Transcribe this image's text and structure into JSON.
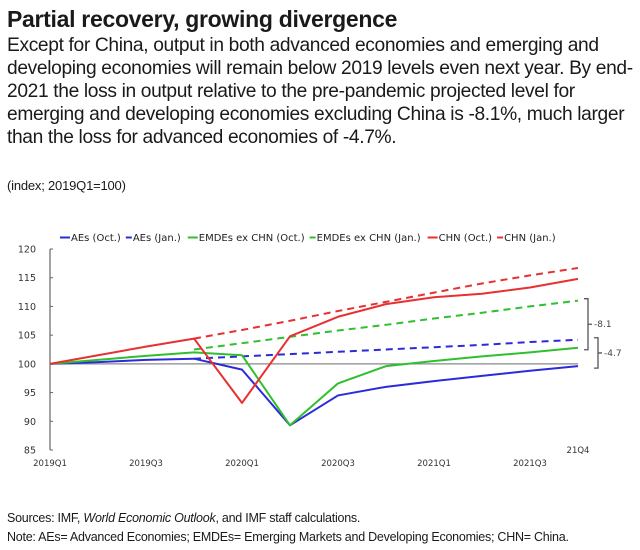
{
  "header": {
    "title": "Partial recovery, growing divergence",
    "subtitle": "Except for China, output in both advanced economies and emerging and developing economies will remain below 2019 levels even next year. By end-2021 the loss in output relative to the pre-pandemic projected level for emerging and developing economies excluding China is -8.1%, much larger than the loss for advanced economies of -4.7%.",
    "units": "(index; 2019Q1=100)"
  },
  "footer": {
    "sources_prefix": "Sources: IMF, ",
    "sources_italic": "World Economic Outlook",
    "sources_suffix": ", and IMF staff calculations.",
    "note": "Note: AEs= Advanced Economies; EMDEs= Emerging Markets and Developing Economies; CHN= China."
  },
  "chart_data": {
    "type": "line",
    "title": "",
    "xlabel": "",
    "ylabel": "index; 2019Q1=100",
    "ylim": [
      85,
      120
    ],
    "yticks": [
      85,
      90,
      95,
      100,
      105,
      110,
      115,
      120
    ],
    "x": [
      "2019Q1",
      "2019Q2",
      "2019Q3",
      "2019Q4",
      "2020Q1",
      "2020Q2",
      "2020Q3",
      "2020Q4",
      "2021Q1",
      "2021Q2",
      "2021Q3",
      "2021Q4"
    ],
    "xtick_labels": [
      {
        "index": 0,
        "label": "2019Q1"
      },
      {
        "index": 2,
        "label": "2019Q3"
      },
      {
        "index": 4,
        "label": "2020Q1"
      },
      {
        "index": 6,
        "label": "2020Q3"
      },
      {
        "index": 8,
        "label": "2021Q1"
      },
      {
        "index": 10,
        "label": "2021Q3"
      }
    ],
    "end_label": "21Q4",
    "reference_line": 100,
    "grid": false,
    "legend_position": "top",
    "series": [
      {
        "name": "AEs (Oct.)",
        "color": "#2b2bd9",
        "dash": false,
        "values": [
          100,
          100.3,
          100.7,
          100.9,
          99.0,
          89.3,
          94.5,
          96.0,
          97.0,
          97.9,
          98.8,
          99.6
        ]
      },
      {
        "name": "AEs (Jan.)",
        "color": "#2b2bd9",
        "dash": true,
        "values": [
          null,
          null,
          null,
          100.9,
          101.3,
          101.7,
          102.1,
          102.5,
          102.9,
          103.3,
          103.8,
          104.2
        ]
      },
      {
        "name": "EMDEs ex CHN (Oct.)",
        "color": "#2fbf2f",
        "dash": false,
        "values": [
          100,
          100.7,
          101.4,
          102.0,
          101.5,
          89.3,
          96.6,
          99.6,
          100.5,
          101.3,
          102.0,
          102.8
        ]
      },
      {
        "name": "EMDEs ex CHN (Jan.)",
        "color": "#2fbf2f",
        "dash": true,
        "values": [
          null,
          null,
          null,
          102.5,
          103.6,
          104.7,
          105.8,
          106.8,
          107.9,
          108.9,
          110.0,
          111.0
        ]
      },
      {
        "name": "CHN (Oct.)",
        "color": "#e83030",
        "dash": false,
        "values": [
          100,
          101.5,
          103.0,
          104.4,
          93.2,
          104.8,
          108.2,
          110.4,
          111.6,
          112.2,
          113.3,
          114.8
        ]
      },
      {
        "name": "CHN (Jan.)",
        "color": "#e83030",
        "dash": true,
        "values": [
          null,
          null,
          null,
          104.4,
          105.9,
          107.5,
          109.2,
          110.8,
          112.4,
          114.0,
          115.4,
          116.7
        ]
      }
    ],
    "annotations": [
      {
        "label": "-8.1",
        "from": 102.8,
        "to": 111.0,
        "at": "2021Q4"
      },
      {
        "label": "-4.7",
        "from": 99.6,
        "to": 104.2,
        "at": "2021Q4"
      }
    ]
  }
}
